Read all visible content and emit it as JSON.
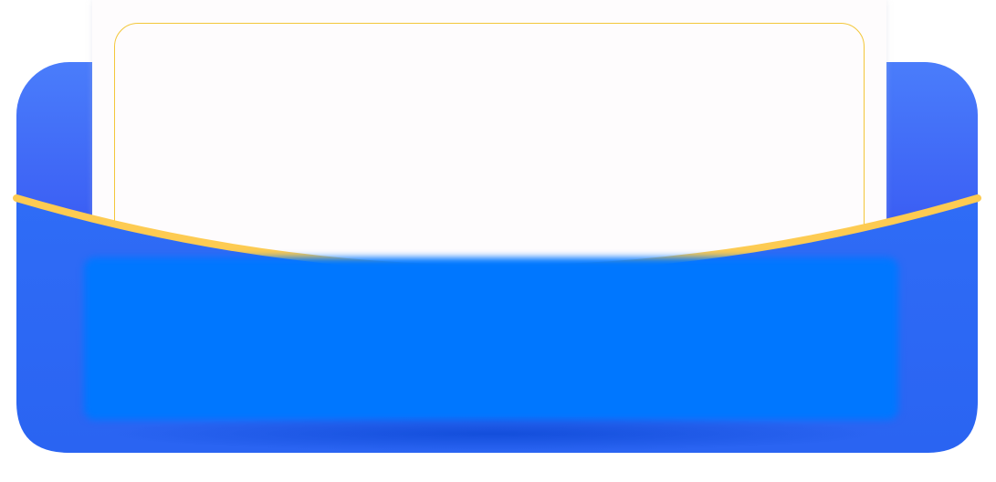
{
  "colors": {
    "pocket_top": "#4a7dfb",
    "pocket_bottom": "#2b4ef0",
    "pocket_front": "#2b68f4",
    "inner_panel": "#0077ff",
    "accent_stroke": "#fdcb52",
    "card_border": "#f3c73a",
    "card_fill": "#fefcfd"
  },
  "elements": {
    "card": {
      "text": ""
    },
    "inner_panel": {
      "text": ""
    }
  }
}
